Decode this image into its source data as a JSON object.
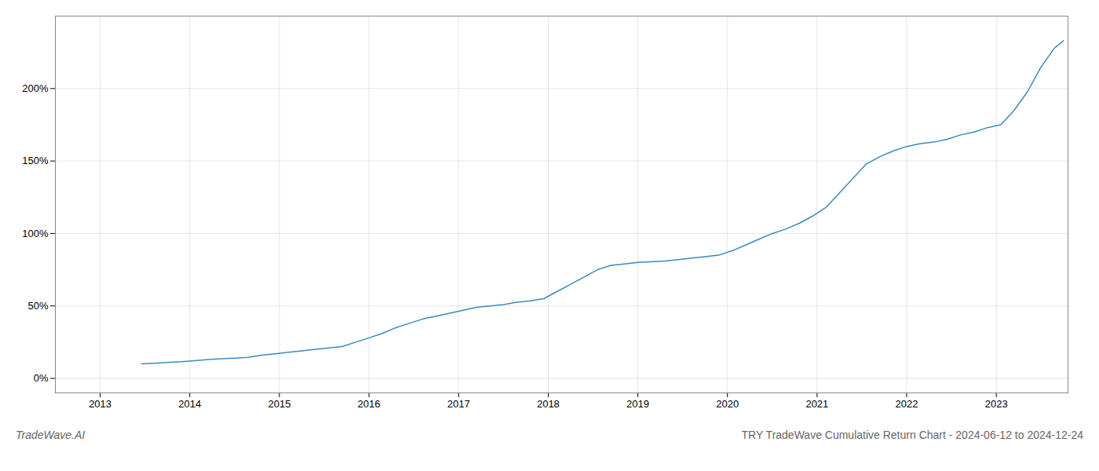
{
  "chart_data": {
    "type": "line",
    "title": "TRY TradeWave Cumulative Return Chart - 2024-06-12 to 2024-12-24",
    "annotations": [
      "TradeWave.AI"
    ],
    "color": "#3a8abf",
    "x": [
      2013.46,
      2013.6,
      2013.75,
      2013.9,
      2014.0,
      2014.1,
      2014.2,
      2014.35,
      2014.5,
      2014.65,
      2014.8,
      2014.95,
      2015.1,
      2015.25,
      2015.4,
      2015.55,
      2015.7,
      2015.85,
      2016.0,
      2016.15,
      2016.3,
      2016.45,
      2016.6,
      2016.75,
      2016.9,
      2017.05,
      2017.2,
      2017.35,
      2017.5,
      2017.65,
      2017.8,
      2017.95,
      2018.1,
      2018.25,
      2018.4,
      2018.55,
      2018.7,
      2018.85,
      2019.0,
      2019.15,
      2019.3,
      2019.45,
      2019.6,
      2019.75,
      2019.9,
      2020.05,
      2020.2,
      2020.35,
      2020.5,
      2020.65,
      2020.8,
      2020.95,
      2021.1,
      2021.25,
      2021.4,
      2021.55,
      2021.7,
      2021.85,
      2022.0,
      2022.15,
      2022.3,
      2022.45,
      2022.6,
      2022.75,
      2022.9,
      2023.05,
      2023.2,
      2023.35,
      2023.5,
      2023.65,
      2023.75
    ],
    "values": [
      10.0,
      10.5,
      11.0,
      11.5,
      12.0,
      12.5,
      13.0,
      13.5,
      14.0,
      14.5,
      16.0,
      17.0,
      18.0,
      19.0,
      20.0,
      21.0,
      22.0,
      25.0,
      28.0,
      31.0,
      35.0,
      38.0,
      41.0,
      43.0,
      45.0,
      47.0,
      49.0,
      50.0,
      51.0,
      52.5,
      53.5,
      55.0,
      60.0,
      65.0,
      70.0,
      75.0,
      78.0,
      79.0,
      80.0,
      80.5,
      81.0,
      82.0,
      83.0,
      84.0,
      85.0,
      88.0,
      92.0,
      96.0,
      100.0,
      103.0,
      107.0,
      112.0,
      118.0,
      128.0,
      138.0,
      148.0,
      153.0,
      157.0,
      160.0,
      162.0,
      163.0,
      165.0,
      168.0,
      170.0,
      173.0,
      175.0,
      185.0,
      198.0,
      215.0,
      228.0,
      233.0
    ],
    "xlim": [
      2012.5,
      2023.8
    ],
    "xticks": [
      2013,
      2014,
      2015,
      2016,
      2017,
      2018,
      2019,
      2020,
      2021,
      2022,
      2023
    ],
    "ylim": [
      -10,
      250
    ],
    "yticks": [
      {
        "value": 0,
        "label": "0%"
      },
      {
        "value": 50,
        "label": "50%"
      },
      {
        "value": 100,
        "label": "100%"
      },
      {
        "value": 150,
        "label": "150%"
      },
      {
        "value": 200,
        "label": "200%"
      }
    ],
    "grid": true
  }
}
